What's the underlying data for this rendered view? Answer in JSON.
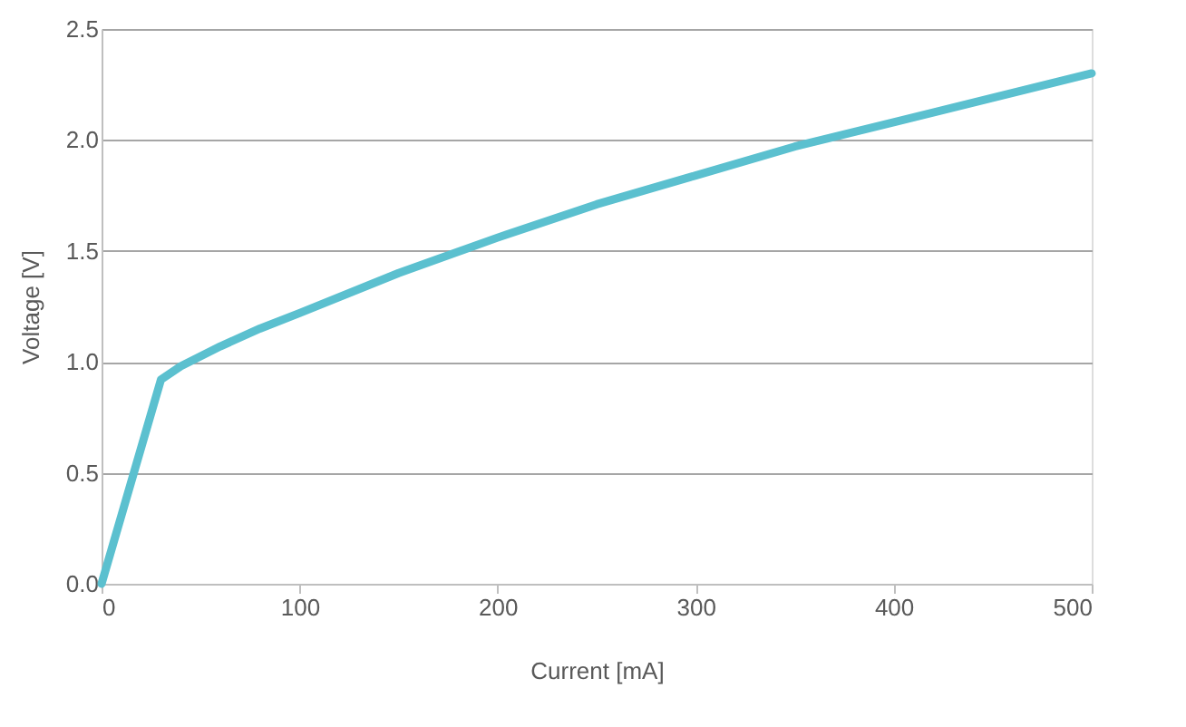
{
  "chart_data": {
    "type": "line",
    "xlabel": "Current [mA]",
    "ylabel": "Voltage [V]",
    "x": [
      0,
      30,
      40,
      60,
      80,
      100,
      150,
      200,
      250,
      300,
      350,
      400,
      450,
      500
    ],
    "series": [
      {
        "color": "#5bc0cf",
        "values": [
          0,
          0.92,
          0.98,
          1.07,
          1.15,
          1.22,
          1.4,
          1.56,
          1.71,
          1.84,
          1.97,
          2.08,
          2.19,
          2.3
        ]
      }
    ],
    "xlim": [
      0,
      500
    ],
    "xticks": [
      0,
      100,
      200,
      300,
      400,
      500
    ],
    "ylim": [
      0,
      2.5
    ],
    "yticks": [
      {
        "value": 0,
        "label": "0.0"
      },
      {
        "value": 0.5,
        "label": "0.5"
      },
      {
        "value": 1,
        "label": "1.0"
      },
      {
        "value": 1.5,
        "label": "1.5"
      },
      {
        "value": 2,
        "label": "2.0"
      },
      {
        "value": 2.5,
        "label": "2.5"
      }
    ],
    "grid": "y",
    "marker": "none",
    "line_style": "solid"
  }
}
